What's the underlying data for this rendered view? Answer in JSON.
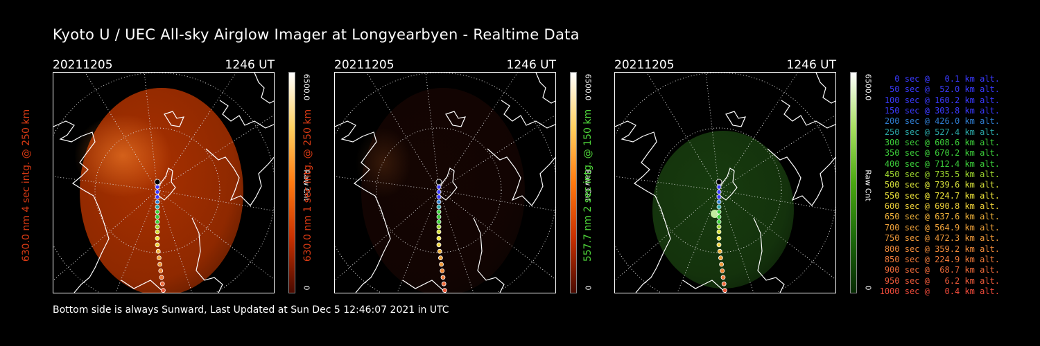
{
  "title": "Kyoto U / UEC All-sky Airglow Imager at Longyearbyen - Realtime Data",
  "footer": "Bottom side is always Sunward, Last Updated at Sun Dec  5 12:46:07 2021 in UTC",
  "panels": [
    {
      "date": "20211205",
      "time": "1246 UT",
      "ylabel": "630.0 nm 4 sec intg. @ 250 km",
      "ylabel_color": "#d93a14",
      "cbar_max": "6500.0",
      "cbar_unit": "Raw Cnt",
      "cbar_min": "0",
      "cbar_gradient": [
        "#4a0a00",
        "#c83000",
        "#ff7a10",
        "#ffd060",
        "#ffffff"
      ],
      "image_color": "#a83000",
      "image_intensity": 1.0
    },
    {
      "date": "20211205",
      "time": "1246 UT",
      "ylabel": "630.0 nm 1 sec intg. @ 250 km",
      "ylabel_color": "#d93a14",
      "cbar_max": "6500.0",
      "cbar_unit": "Raw Cnt",
      "cbar_min": "0",
      "cbar_gradient": [
        "#4a0a00",
        "#c83000",
        "#ff7a10",
        "#ffd060",
        "#ffffff"
      ],
      "image_color": "#3a0e06",
      "image_intensity": 0.35
    },
    {
      "date": "20211205",
      "time": "1246 UT",
      "ylabel": "557.7 nm 2 sec intg. @ 150 km",
      "ylabel_color": "#4fd63a",
      "cbar_max": "6500.0",
      "cbar_unit": "Raw Cnt",
      "cbar_min": "0",
      "cbar_gradient": [
        "#062a02",
        "#1b6a0a",
        "#4aa810",
        "#a8e060",
        "#ffffff"
      ],
      "image_color": "#1d4a12",
      "image_intensity": 0.8
    }
  ],
  "legend": [
    {
      "text": "   0 sec @   0.1 km alt.",
      "color": "#3a3aff"
    },
    {
      "text": "  50 sec @  52.0 km alt.",
      "color": "#3a3aff"
    },
    {
      "text": " 100 sec @ 160.2 km alt.",
      "color": "#3a3aff"
    },
    {
      "text": " 150 sec @ 303.8 km alt.",
      "color": "#3a3aff"
    },
    {
      "text": " 200 sec @ 426.0 km alt.",
      "color": "#2f7ccf"
    },
    {
      "text": " 250 sec @ 527.4 km alt.",
      "color": "#2aa6a6"
    },
    {
      "text": " 300 sec @ 608.6 km alt.",
      "color": "#3ccf3a"
    },
    {
      "text": " 350 sec @ 670.2 km alt.",
      "color": "#3ccf3a"
    },
    {
      "text": " 400 sec @ 712.4 km alt.",
      "color": "#3ccf3a"
    },
    {
      "text": " 450 sec @ 735.5 km alt.",
      "color": "#9fd92f"
    },
    {
      "text": " 500 sec @ 739.6 km alt.",
      "color": "#d6e03a"
    },
    {
      "text": " 550 sec @ 724.7 km alt.",
      "color": "#f0e63a"
    },
    {
      "text": " 600 sec @ 690.8 km alt.",
      "color": "#f0d23a"
    },
    {
      "text": " 650 sec @ 637.6 km alt.",
      "color": "#f0b23a"
    },
    {
      "text": " 700 sec @ 564.9 km alt.",
      "color": "#f0a23a"
    },
    {
      "text": " 750 sec @ 472.3 km alt.",
      "color": "#f09a3a"
    },
    {
      "text": " 800 sec @ 359.2 km alt.",
      "color": "#f08a3a"
    },
    {
      "text": " 850 sec @ 224.9 km alt.",
      "color": "#f07a3a"
    },
    {
      "text": " 900 sec @  68.7 km alt.",
      "color": "#ef6a3a"
    },
    {
      "text": " 950 sec @   6.2 km alt.",
      "color": "#ef5a3a"
    },
    {
      "text": "1000 sec @   0.4 km alt.",
      "color": "#ef4a3a"
    }
  ]
}
